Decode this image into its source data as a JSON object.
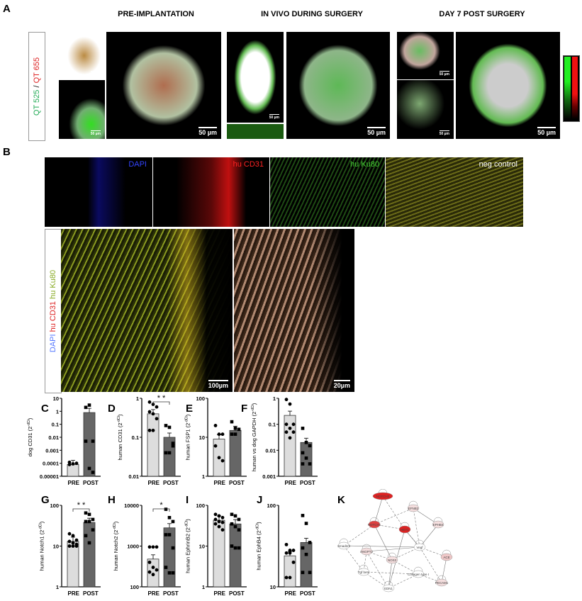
{
  "panels": {
    "A": "A",
    "B": "B",
    "C": "C",
    "D": "D",
    "E": "E",
    "F": "F",
    "G": "G",
    "H": "H",
    "I": "I",
    "J": "J",
    "K": "K"
  },
  "panelA": {
    "titles": [
      "PRE-IMPLANTATION",
      "IN VIVO DURING SURGERY",
      "DAY 7 POST SURGERY"
    ],
    "side_label": {
      "green": "QT 525",
      "sep": " / ",
      "red": "QT 655"
    },
    "scale_bar": "50 µm",
    "colors": {
      "green": "#22dd44",
      "red": "#ee2222"
    }
  },
  "panelB": {
    "channels": [
      "DAPI",
      "hu CD31",
      "hu Ku80",
      "neg control"
    ],
    "channel_colors": [
      "#3344ff",
      "#ff2222",
      "#44cc33",
      "#ffffff"
    ],
    "merge_label": {
      "dapi": "DAPI",
      "cd31": " hu CD31",
      "ku80": " hu Ku80"
    },
    "scale_bars": [
      "100µm",
      "20µm"
    ]
  },
  "chart_data": [
    {
      "id": "C",
      "type": "bar",
      "yscale": "log",
      "ylim": [
        1e-05,
        10
      ],
      "yticks": [
        "0.00001",
        "0.0001",
        "0.001",
        "0.01",
        "0.1",
        "1",
        "10"
      ],
      "ylabel": "dog CD31 (2",
      "ylabel_sup": "-dCt",
      "ylabel_end": ")",
      "categories": [
        "PRE",
        "POST"
      ],
      "values": [
        8e-05,
        0.8
      ],
      "points": [
        [
          0.00012,
          9e-05,
          0.0001,
          8e-05
        ],
        [
          2,
          3,
          0.005,
          0.005,
          4e-05,
          2e-05
        ]
      ],
      "significance": ""
    },
    {
      "id": "D",
      "type": "bar",
      "yscale": "log",
      "ylim": [
        0.01,
        1
      ],
      "yticks": [
        "0.01",
        "0.1",
        "1"
      ],
      "ylabel": "human CD31 (2",
      "ylabel_sup": "-dCt",
      "ylabel_end": ")",
      "categories": [
        "PRE",
        "POST"
      ],
      "values": [
        0.4,
        0.1
      ],
      "points": [
        [
          0.8,
          0.7,
          0.6,
          0.45,
          0.4,
          0.3,
          0.15,
          0.15
        ],
        [
          0.2,
          0.18,
          0.07,
          0.04,
          0.04,
          0.06
        ]
      ],
      "significance": "* *"
    },
    {
      "id": "E",
      "type": "bar",
      "yscale": "log",
      "ylim": [
        1,
        100
      ],
      "yticks": [
        "1",
        "10",
        "100"
      ],
      "ylabel": "human FSP1 (2",
      "ylabel_sup": "-dCt",
      "ylabel_end": ")",
      "categories": [
        "PRE",
        "POST"
      ],
      "values": [
        9,
        15
      ],
      "points": [
        [
          20,
          12,
          12,
          6,
          3,
          2.5
        ],
        [
          25,
          17,
          16,
          12,
          12
        ]
      ],
      "significance": ""
    },
    {
      "id": "F",
      "type": "bar",
      "yscale": "log",
      "ylim": [
        0.001,
        1
      ],
      "yticks": [
        "0.001",
        "0.01",
        "0.1",
        "1"
      ],
      "ylabel": "human vs dog GAPDH (2",
      "ylabel_sup": "-dCt",
      "ylabel_end": ")",
      "categories": [
        "PRE",
        "POST"
      ],
      "values": [
        0.22,
        0.02
      ],
      "points": [
        [
          0.9,
          0.6,
          0.1,
          0.1,
          0.07,
          0.05,
          0.05,
          0.03
        ],
        [
          0.07,
          0.02,
          0.015,
          0.008,
          0.005,
          0.003,
          0.003
        ]
      ],
      "significance": ""
    },
    {
      "id": "G",
      "type": "bar",
      "yscale": "log",
      "ylim": [
        1,
        100
      ],
      "yticks": [
        "1",
        "10",
        "100"
      ],
      "ylabel": "human Notch1 (2",
      "ylabel_sup": "-dCt",
      "ylabel_end": ")",
      "categories": [
        "PRE",
        "POST"
      ],
      "values": [
        13,
        38
      ],
      "points": [
        [
          20,
          18,
          14,
          13,
          12,
          11,
          10,
          10,
          10
        ],
        [
          65,
          60,
          45,
          40,
          40,
          25,
          18,
          12
        ]
      ],
      "significance": "* *"
    },
    {
      "id": "H",
      "type": "bar",
      "yscale": "log",
      "ylim": [
        100,
        10000
      ],
      "yticks": [
        "100",
        "1000",
        "10000"
      ],
      "ylabel": "human Notch2 (2",
      "ylabel_sup": "-dCt",
      "ylabel_end": ")",
      "categories": [
        "PRE",
        "POST"
      ],
      "values": [
        480,
        2800
      ],
      "points": [
        [
          950,
          950,
          950,
          400,
          300,
          260,
          230,
          200
        ],
        [
          8000,
          5000,
          4000,
          1900,
          1900,
          900,
          300,
          220,
          220
        ]
      ],
      "significance": "*"
    },
    {
      "id": "I",
      "type": "bar",
      "yscale": "log",
      "ylim": [
        1,
        100
      ],
      "yticks": [
        "1",
        "10",
        "100"
      ],
      "ylabel": "human EphrinB2 (2",
      "ylabel_sup": "-dCt",
      "ylabel_end": ")",
      "categories": [
        "PRE",
        "POST"
      ],
      "values": [
        43,
        35
      ],
      "points": [
        [
          60,
          55,
          50,
          45,
          40,
          38,
          35,
          30,
          25
        ],
        [
          60,
          55,
          45,
          35,
          30,
          25,
          10,
          9,
          9
        ]
      ],
      "significance": ""
    },
    {
      "id": "J",
      "type": "bar",
      "yscale": "log",
      "ylim": [
        10,
        100
      ],
      "yticks": [
        "10",
        "100"
      ],
      "ylabel": "human EphB4 (2",
      "ylabel_sup": "-dCt",
      "ylabel_end": ")",
      "categories": [
        "PRE",
        "POST"
      ],
      "values": [
        24,
        35
      ],
      "points": [
        [
          33,
          28,
          28,
          26,
          26,
          20,
          13,
          13
        ],
        [
          75,
          60,
          35,
          30,
          25,
          15,
          15
        ]
      ],
      "significance": ""
    }
  ],
  "network": {
    "nodes": [
      {
        "id": "NOTCH3",
        "label": "NOTCH3",
        "color": "#dd2222"
      },
      {
        "id": "EFNB2",
        "label": "EFNB2",
        "color": "#f4dede"
      },
      {
        "id": "EPHB4",
        "label": "EPHB4",
        "color": "#f4dede"
      },
      {
        "id": "NOTCH1",
        "label": "NOTCH1",
        "color": "#e04040"
      },
      {
        "id": "HEY1",
        "label": "HEY1",
        "color": "#dd2222"
      },
      {
        "id": "Smad",
        "label": "Smad2/3",
        "color": "#ffffff"
      },
      {
        "id": "ANGPT2",
        "label": "ANGPT2",
        "color": "#f4dede"
      },
      {
        "id": "VEGF",
        "label": "Vegf",
        "color": "#ffffff"
      },
      {
        "id": "NOS3",
        "label": "NOS3",
        "color": "#f4dede"
      },
      {
        "id": "ACE",
        "label": "ACE",
        "color": "#f0c8c8"
      },
      {
        "id": "TGFB",
        "label": "Tgf beta",
        "color": "#ffffff"
      },
      {
        "id": "COL1",
        "label": "Collagen type I",
        "color": "#ffffff"
      },
      {
        "id": "EDN1",
        "label": "EDN1",
        "color": "#ffffff"
      },
      {
        "id": "PECAM1",
        "label": "PECAM1",
        "color": "#f4dede"
      }
    ]
  }
}
